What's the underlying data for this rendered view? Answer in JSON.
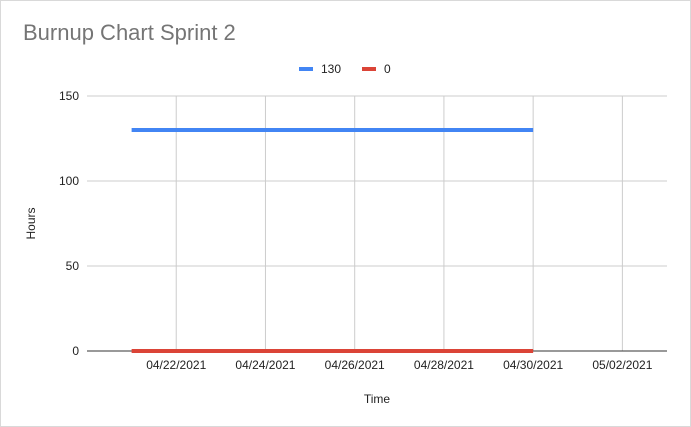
{
  "chart_data": {
    "type": "line",
    "title": "Burnup Chart Sprint 2",
    "xlabel": "Time",
    "ylabel": "Hours",
    "x_ticks": [
      "04/22/2021",
      "04/24/2021",
      "04/26/2021",
      "04/28/2021",
      "04/30/2021",
      "05/02/2021"
    ],
    "y_ticks": [
      0,
      50,
      100,
      150
    ],
    "ylim": [
      0,
      150
    ],
    "xlim": [
      "04/20/2021",
      "05/03/2021"
    ],
    "grid": true,
    "legend_position": "top",
    "series": [
      {
        "name": "130",
        "color": "#4285f4",
        "x": [
          "04/21/2021",
          "04/30/2021"
        ],
        "values": [
          130,
          130
        ]
      },
      {
        "name": "0",
        "color": "#db4437",
        "x": [
          "04/21/2021",
          "04/30/2021"
        ],
        "values": [
          0,
          0
        ]
      }
    ]
  }
}
